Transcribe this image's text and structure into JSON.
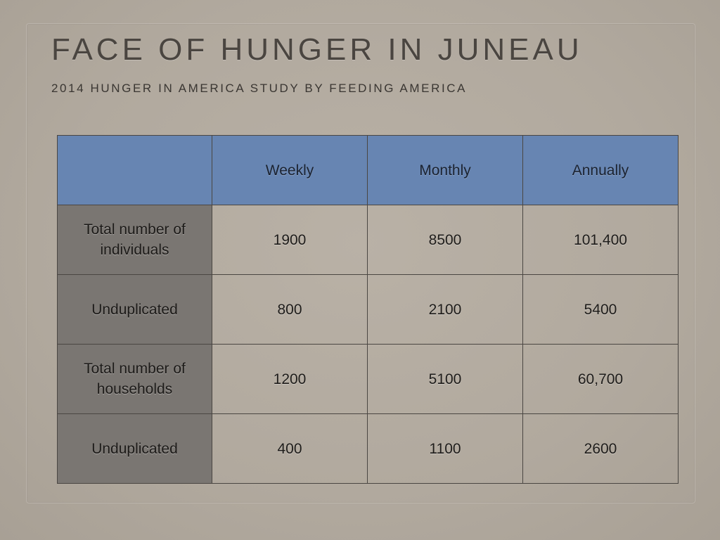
{
  "slide": {
    "title": "FACE OF HUNGER IN JUNEAU",
    "subtitle": "2014 HUNGER IN AMERICA STUDY BY FEEDING AMERICA"
  },
  "table": {
    "header": {
      "corner": "",
      "columns": [
        "Weekly",
        "Monthly",
        "Annually"
      ]
    },
    "rows": [
      {
        "label": "Total number of individuals",
        "values": [
          "1900",
          "8500",
          "101,400"
        ]
      },
      {
        "label": "Unduplicated",
        "values": [
          "800",
          "2100",
          "5400"
        ]
      },
      {
        "label": "Total number of households",
        "values": [
          "1200",
          "5100",
          "60,700"
        ]
      },
      {
        "label": "Unduplicated",
        "values": [
          "400",
          "1100",
          "2600"
        ]
      }
    ]
  },
  "colors": {
    "header_fill": "#6785b2",
    "row_label_fill": "#7a7672",
    "background": "#b3aba0",
    "title_text": "#4a4540"
  }
}
